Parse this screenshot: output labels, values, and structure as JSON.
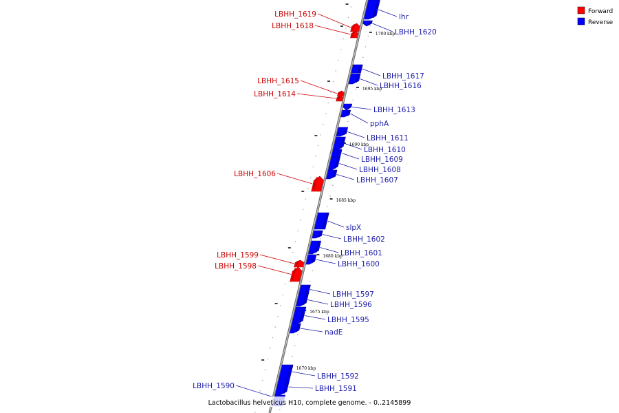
{
  "colors": {
    "forward": "#ff0000",
    "forward_dark": "#a80000",
    "forward_label": "#cc0000",
    "reverse": "#0000ff",
    "reverse_dark": "#00008a",
    "reverse_label": "#1a1aa8",
    "backbone": "#808080"
  },
  "legend": [
    {
      "label": "Forward",
      "strand": "forward"
    },
    {
      "label": "Reverse",
      "strand": "reverse"
    }
  ],
  "caption": "Lactobacillus helveticus H10, complete genome. - 0..2145899",
  "ticks": [
    {
      "label": "1700 kbp",
      "kbp": 1700
    },
    {
      "label": "1695 kbp",
      "kbp": 1695
    },
    {
      "label": "1690 kbp",
      "kbp": 1690
    },
    {
      "label": "1685 kbp",
      "kbp": 1685
    },
    {
      "label": "1680 kbp",
      "kbp": 1680
    },
    {
      "label": "1675 kbp",
      "kbp": 1675
    },
    {
      "label": "1670 kbp",
      "kbp": 1670
    }
  ],
  "genes": [
    {
      "name": "lhr",
      "strand": "reverse"
    },
    {
      "name": "LBHH_1620",
      "strand": "reverse"
    },
    {
      "name": "LBHH_1619",
      "strand": "forward"
    },
    {
      "name": "LBHH_1618",
      "strand": "forward"
    },
    {
      "name": "LBHH_1617",
      "strand": "reverse"
    },
    {
      "name": "LBHH_1616",
      "strand": "reverse"
    },
    {
      "name": "LBHH_1615",
      "strand": "forward"
    },
    {
      "name": "LBHH_1614",
      "strand": "forward"
    },
    {
      "name": "LBHH_1613",
      "strand": "reverse"
    },
    {
      "name": "pphA",
      "strand": "reverse"
    },
    {
      "name": "LBHH_1611",
      "strand": "reverse"
    },
    {
      "name": "LBHH_1610",
      "strand": "reverse"
    },
    {
      "name": "LBHH_1609",
      "strand": "reverse"
    },
    {
      "name": "LBHH_1608",
      "strand": "reverse"
    },
    {
      "name": "LBHH_1607",
      "strand": "reverse"
    },
    {
      "name": "LBHH_1606",
      "strand": "forward"
    },
    {
      "name": "slpX",
      "strand": "reverse"
    },
    {
      "name": "LBHH_1602",
      "strand": "reverse"
    },
    {
      "name": "LBHH_1601",
      "strand": "reverse"
    },
    {
      "name": "LBHH_1600",
      "strand": "reverse"
    },
    {
      "name": "LBHH_1599",
      "strand": "forward"
    },
    {
      "name": "LBHH_1598",
      "strand": "forward"
    },
    {
      "name": "LBHH_1597",
      "strand": "reverse"
    },
    {
      "name": "LBHH_1596",
      "strand": "reverse"
    },
    {
      "name": "LBHH_1595",
      "strand": "reverse"
    },
    {
      "name": "nadE",
      "strand": "reverse"
    },
    {
      "name": "LBHH_1592",
      "strand": "reverse"
    },
    {
      "name": "LBHH_1591",
      "strand": "reverse"
    },
    {
      "name": "LBHH_1590",
      "strand": "reverse"
    }
  ]
}
